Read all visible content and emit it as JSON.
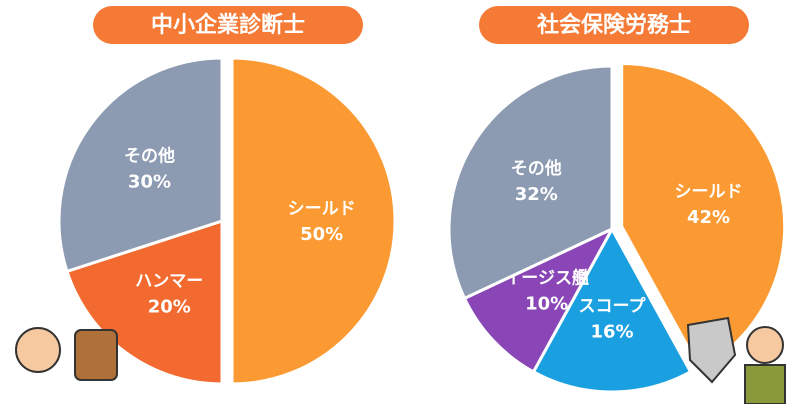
{
  "chart_data": [
    {
      "type": "pie",
      "title": "中小企業診断士",
      "categories": [
        "シールド",
        "ハンマー",
        "その他"
      ],
      "values": [
        50,
        20,
        30
      ],
      "value_labels": [
        "50%",
        "20%",
        "30%"
      ],
      "colors": [
        "#fb9a32",
        "#f26a30",
        "#8c9ab2"
      ]
    },
    {
      "type": "pie",
      "title": "社会保険労務士",
      "categories": [
        "シールド",
        "スコープ",
        "イージス艦",
        "その他"
      ],
      "values": [
        42,
        16,
        10,
        32
      ],
      "value_labels": [
        "42%",
        "16%",
        "10%",
        "32%"
      ],
      "colors": [
        "#fb9a32",
        "#1a9fe0",
        "#8a46b6",
        "#8c9ab2"
      ]
    }
  ]
}
